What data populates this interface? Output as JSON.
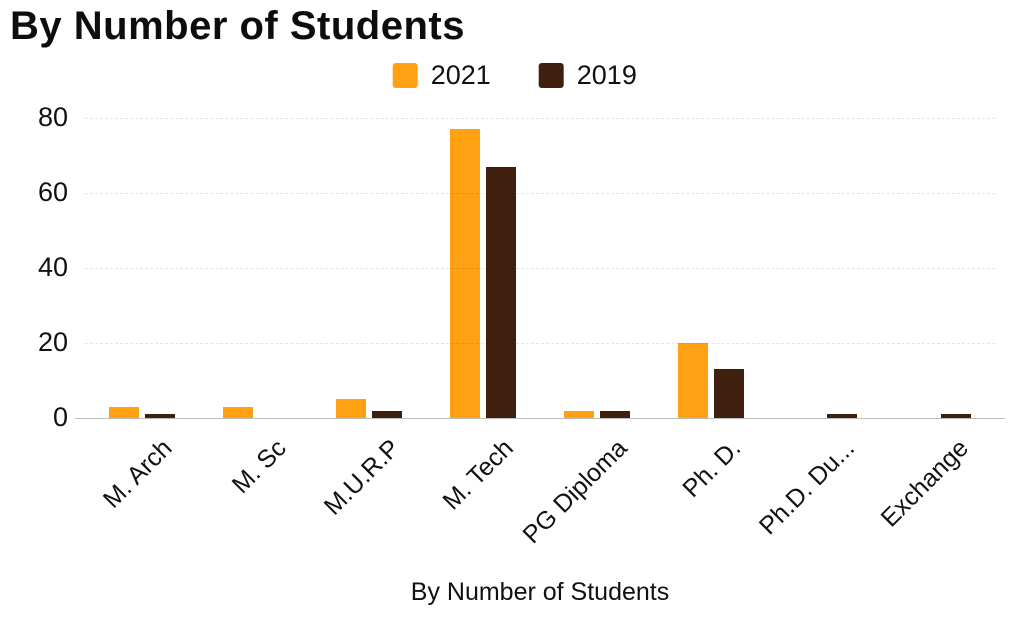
{
  "title": "By Number of Students",
  "chart_data": {
    "type": "bar",
    "title": "By Number of Students",
    "categories": [
      "M. Arch",
      "M. Sc",
      "M.U.R.P",
      "M. Tech",
      "PG Diploma",
      "Ph. D.",
      "Ph.D. Du...",
      "Exchange"
    ],
    "series": [
      {
        "name": "2021",
        "color": "#FFA113",
        "values": [
          3,
          3,
          5,
          77,
          2,
          20,
          0,
          0
        ]
      },
      {
        "name": "2019",
        "color": "#3F200E",
        "values": [
          1,
          0,
          2,
          67,
          2,
          13,
          1,
          1
        ]
      }
    ],
    "xlabel": "By Number of Students",
    "ylabel": "",
    "yticks": [
      0,
      20,
      40,
      60,
      80
    ],
    "ylim": [
      0,
      80
    ],
    "grid": "dashed-horizontal",
    "legend_position": "top"
  }
}
